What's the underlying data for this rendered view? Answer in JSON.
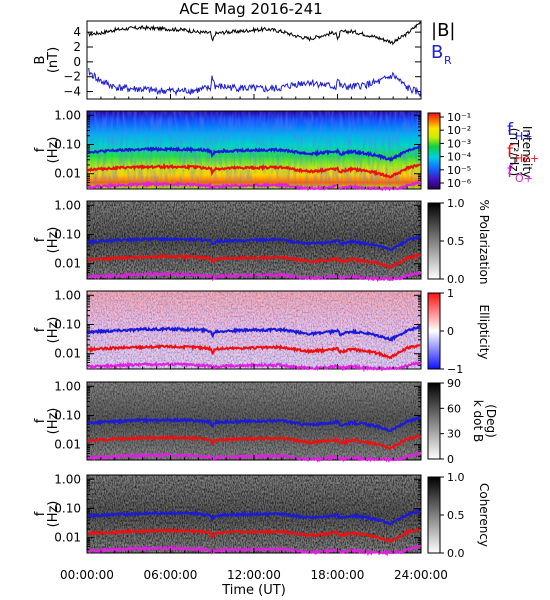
{
  "title": "ACE Mag 2016-241",
  "x_axis": {
    "label": "Time (UT)",
    "ticks": [
      "00:00:00",
      "06:00:00",
      "12:00:00",
      "18:00:00",
      "24:00:00"
    ],
    "range_hours": [
      0,
      24
    ]
  },
  "legend": {
    "b_total": "|B|",
    "b_r": "B",
    "b_r_sub": "R",
    "f_h": "f",
    "f_h_sub": "H+",
    "f_he": "f",
    "f_he_sub": "He+",
    "f_o": "f",
    "f_o_sub": "O+"
  },
  "colors": {
    "b_total": "#000000",
    "b_r": "#2020d0",
    "f_h": "#1a1ad8",
    "f_he": "#ee1010",
    "f_o": "#e020e0"
  },
  "chart_data": [
    {
      "type": "line",
      "panel": "magnetic-field",
      "ylabel": "B",
      "ylabel_unit": "(nT)",
      "ylim": [
        -5,
        5.5
      ],
      "yticks": [
        4,
        2,
        0,
        -2,
        -4
      ],
      "x_hours": [
        0,
        1,
        2,
        3,
        4,
        5,
        6,
        7,
        8,
        8.9,
        9,
        9.2,
        10,
        11,
        12,
        13,
        14,
        15,
        16,
        17,
        17.9,
        18,
        18.2,
        19,
        20,
        21,
        22,
        23,
        24
      ],
      "series": [
        {
          "name": "|B|",
          "values": [
            3.7,
            3.9,
            4.3,
            4.5,
            4.6,
            4.5,
            4.4,
            4.3,
            4.0,
            3.9,
            2.6,
            3.8,
            4.0,
            4.1,
            4.3,
            4.4,
            4.1,
            3.5,
            3.1,
            3.6,
            4.0,
            2.8,
            4.0,
            4.1,
            3.7,
            3.2,
            2.6,
            3.8,
            5.4
          ]
        },
        {
          "name": "B_R",
          "values": [
            -1.2,
            -2.6,
            -3.4,
            -3.6,
            -3.7,
            -3.9,
            -3.9,
            -3.9,
            -3.8,
            -3.5,
            -1.8,
            -3.3,
            -3.4,
            -3.5,
            -3.6,
            -3.7,
            -3.5,
            -3.0,
            -2.7,
            -3.1,
            -3.4,
            -2.2,
            -3.3,
            -3.4,
            -3.1,
            -2.7,
            -1.8,
            -3.5,
            -4.3
          ]
        }
      ]
    },
    {
      "type": "heatmap",
      "panel": "intensity",
      "ylabel": "f",
      "ylabel_unit": "(Hz)",
      "yticks": [
        "1.00",
        "0.10",
        "0.01"
      ],
      "colorbar_label": "Intensity",
      "colorbar_unit": "(nT²/Hz)",
      "colorbar_ticks": [
        "10⁻¹",
        "10⁻²",
        "10⁻³",
        "10⁻⁴",
        "10⁻⁵",
        "10⁻⁶"
      ],
      "colormap": "rainbow"
    },
    {
      "type": "heatmap",
      "panel": "polarization",
      "ylabel": "f",
      "ylabel_unit": "(Hz)",
      "yticks": [
        "1.00",
        "0.10",
        "0.01"
      ],
      "colorbar_label": "% Polarization",
      "colorbar_ticks": [
        "1.0",
        "0.5",
        "0.0"
      ],
      "colormap": "gray"
    },
    {
      "type": "heatmap",
      "panel": "ellipticity",
      "ylabel": "f",
      "ylabel_unit": "(Hz)",
      "yticks": [
        "1.00",
        "0.10",
        "0.01"
      ],
      "colorbar_label": "Ellipticity",
      "colorbar_ticks": [
        "1",
        "0",
        "−1"
      ],
      "colormap": "blue-white-red"
    },
    {
      "type": "heatmap",
      "panel": "k-dot-b",
      "ylabel": "f",
      "ylabel_unit": "(Hz)",
      "yticks": [
        "1.00",
        "0.10",
        "0.01"
      ],
      "colorbar_label": "k dot B",
      "colorbar_unit": "(Deg)",
      "colorbar_ticks": [
        "90",
        "60",
        "30",
        "0"
      ],
      "colormap": "gray"
    },
    {
      "type": "heatmap",
      "panel": "coherency",
      "ylabel": "f",
      "ylabel_unit": "(Hz)",
      "yticks": [
        "1.00",
        "0.10",
        "0.01"
      ],
      "colorbar_label": "Coherency",
      "colorbar_ticks": [
        "1.0",
        "0.5",
        "0.0"
      ],
      "colormap": "gray"
    },
    {
      "type": "line",
      "panel": "gyrofrequency-overlays",
      "yscale": "log",
      "ylim": [
        0.003,
        1.4
      ],
      "x_hours": [
        0,
        2,
        4,
        6,
        8,
        8.9,
        9,
        9.2,
        10,
        12,
        14,
        15,
        16,
        17,
        18,
        18.2,
        19,
        20,
        21,
        21.8,
        22.5,
        23,
        24
      ],
      "series": [
        {
          "name": "f_H+",
          "values": [
            0.055,
            0.062,
            0.068,
            0.07,
            0.066,
            0.06,
            0.04,
            0.058,
            0.061,
            0.064,
            0.066,
            0.055,
            0.048,
            0.052,
            0.06,
            0.046,
            0.057,
            0.05,
            0.04,
            0.03,
            0.045,
            0.062,
            0.082
          ]
        },
        {
          "name": "f_He+",
          "values": [
            0.0138,
            0.0155,
            0.017,
            0.0175,
            0.0165,
            0.015,
            0.01,
            0.0145,
            0.0152,
            0.016,
            0.0165,
            0.0138,
            0.012,
            0.013,
            0.015,
            0.0115,
            0.0142,
            0.0125,
            0.01,
            0.0075,
            0.0112,
            0.0155,
            0.0205
          ]
        },
        {
          "name": "f_O+",
          "values": [
            0.0035,
            0.0039,
            0.0043,
            0.0044,
            0.0041,
            0.0038,
            0.0032,
            0.0036,
            0.0038,
            0.004,
            0.0041,
            0.0035,
            0.0032,
            0.0033,
            0.0038,
            0.0032,
            0.0036,
            0.0032,
            0.0031,
            0.0031,
            0.0032,
            0.0039,
            0.0051
          ]
        }
      ]
    }
  ]
}
